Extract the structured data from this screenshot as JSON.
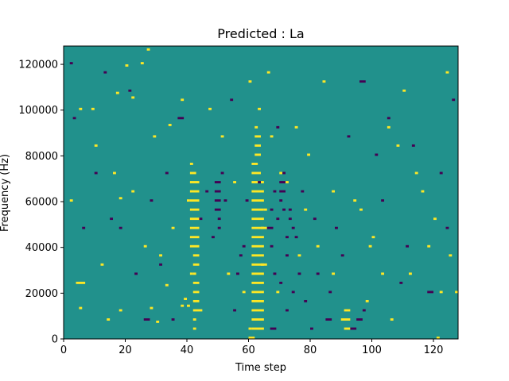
{
  "chart_data": {
    "type": "heatmap",
    "title": "Predicted : La",
    "xlabel": "Time step",
    "ylabel": "Frequency (Hz)",
    "xlim": [
      0,
      128
    ],
    "ylim": [
      0,
      128000
    ],
    "x_ticks": [
      0,
      20,
      40,
      60,
      80,
      100,
      120
    ],
    "y_ticks": [
      0,
      20000,
      40000,
      60000,
      80000,
      100000,
      120000
    ],
    "x_tick_labels": [
      "0",
      "20",
      "40",
      "60",
      "80",
      "100",
      "120"
    ],
    "y_tick_labels": [
      "0",
      "20000",
      "40000",
      "60000",
      "80000",
      "100000",
      "120000"
    ],
    "colors": {
      "background": "#21918c",
      "high": "#fde725",
      "low": "#440154"
    },
    "grid": false,
    "cells_high": [
      [
        4,
        24,
        3,
        1
      ],
      [
        5,
        13,
        1,
        1
      ],
      [
        5,
        100,
        1,
        1
      ],
      [
        17,
        107,
        1,
        1
      ],
      [
        18,
        12,
        1,
        1
      ],
      [
        18,
        61,
        1,
        1
      ],
      [
        20,
        119,
        1,
        1
      ],
      [
        22,
        105,
        1,
        1
      ],
      [
        25,
        120,
        1,
        1
      ],
      [
        27,
        126,
        1,
        1
      ],
      [
        28,
        13,
        1,
        1
      ],
      [
        30,
        7,
        1,
        1
      ],
      [
        33,
        23,
        1,
        1
      ],
      [
        34,
        93,
        1,
        1
      ],
      [
        38,
        14,
        1,
        1
      ],
      [
        39,
        17,
        1,
        1
      ],
      [
        40,
        14,
        1,
        1
      ],
      [
        40,
        60,
        1,
        1
      ],
      [
        41,
        28,
        1,
        1
      ],
      [
        41,
        40,
        3,
        1
      ],
      [
        41,
        44,
        3,
        1
      ],
      [
        41,
        48,
        3,
        1
      ],
      [
        41,
        52,
        3,
        1
      ],
      [
        41,
        56,
        3,
        1
      ],
      [
        41,
        60,
        3,
        1
      ],
      [
        41,
        64,
        3,
        1
      ],
      [
        41,
        68,
        3,
        1
      ],
      [
        41,
        72,
        2,
        1
      ],
      [
        42,
        36,
        2,
        1
      ],
      [
        42,
        32,
        2,
        1
      ],
      [
        42,
        24,
        2,
        1
      ],
      [
        42,
        20,
        2,
        1
      ],
      [
        42,
        16,
        2,
        1
      ],
      [
        42,
        12,
        2,
        1
      ],
      [
        42,
        28,
        1,
        1
      ],
      [
        42,
        8,
        1,
        1
      ],
      [
        42,
        4,
        1,
        1
      ],
      [
        41,
        76,
        1,
        1
      ],
      [
        61,
        4,
        4,
        1
      ],
      [
        61,
        8,
        4,
        1
      ],
      [
        61,
        12,
        4,
        1
      ],
      [
        61,
        16,
        4,
        1
      ],
      [
        61,
        20,
        4,
        1
      ],
      [
        61,
        24,
        4,
        1
      ],
      [
        61,
        28,
        4,
        1
      ],
      [
        61,
        32,
        4,
        1
      ],
      [
        61,
        36,
        4,
        1
      ],
      [
        61,
        40,
        4,
        1
      ],
      [
        61,
        44,
        4,
        1
      ],
      [
        61,
        48,
        4,
        1
      ],
      [
        61,
        52,
        4,
        1
      ],
      [
        61,
        56,
        4,
        1
      ],
      [
        61,
        60,
        4,
        1
      ],
      [
        61,
        64,
        4,
        1
      ],
      [
        61,
        68,
        4,
        1
      ],
      [
        61,
        72,
        3,
        1
      ],
      [
        61,
        76,
        2,
        1
      ],
      [
        62,
        80,
        2,
        1
      ],
      [
        62,
        84,
        2,
        1
      ],
      [
        62,
        88,
        2,
        1
      ],
      [
        62,
        92,
        1,
        1
      ],
      [
        60,
        4,
        1,
        1
      ],
      [
        60,
        0,
        2,
        1
      ],
      [
        64,
        32,
        2,
        1
      ],
      [
        64,
        48,
        2,
        1
      ],
      [
        65,
        56,
        1,
        1
      ],
      [
        60,
        112,
        1,
        1
      ],
      [
        63,
        100,
        1,
        1
      ],
      [
        67,
        88,
        1,
        1
      ],
      [
        70,
        72,
        1,
        1
      ],
      [
        75,
        92,
        1,
        1
      ],
      [
        78,
        56,
        1,
        1
      ],
      [
        82,
        40,
        1,
        1
      ],
      [
        87,
        28,
        1,
        1
      ],
      [
        90,
        8,
        3,
        1
      ],
      [
        91,
        4,
        2,
        1
      ],
      [
        91,
        12,
        2,
        1
      ],
      [
        94,
        60,
        1,
        1
      ],
      [
        99,
        40,
        1,
        1
      ],
      [
        103,
        28,
        1,
        1
      ],
      [
        105,
        92,
        1,
        1
      ],
      [
        110,
        108,
        1,
        1
      ],
      [
        114,
        72,
        1,
        1
      ],
      [
        118,
        40,
        1,
        1
      ],
      [
        121,
        0,
        1,
        1
      ],
      [
        122,
        20,
        1,
        1
      ],
      [
        127,
        20,
        1,
        1
      ],
      [
        124,
        116,
        1,
        1
      ],
      [
        2,
        60,
        1,
        1
      ],
      [
        10,
        84,
        1,
        1
      ],
      [
        14,
        8,
        1,
        1
      ],
      [
        16,
        72,
        1,
        1
      ],
      [
        22,
        64,
        1,
        1
      ],
      [
        26,
        40,
        1,
        1
      ],
      [
        31,
        36,
        1,
        1
      ],
      [
        35,
        48,
        1,
        1
      ],
      [
        38,
        104,
        1,
        1
      ],
      [
        47,
        100,
        1,
        1
      ],
      [
        51,
        88,
        1,
        1
      ],
      [
        55,
        68,
        1,
        1
      ],
      [
        58,
        20,
        1,
        1
      ],
      [
        66,
        116,
        1,
        1
      ],
      [
        72,
        68,
        1,
        1
      ],
      [
        79,
        80,
        1,
        1
      ],
      [
        84,
        112,
        1,
        1
      ],
      [
        96,
        56,
        1,
        1
      ],
      [
        100,
        44,
        1,
        1
      ],
      [
        106,
        8,
        1,
        1
      ],
      [
        108,
        84,
        1,
        1
      ],
      [
        116,
        64,
        1,
        1
      ],
      [
        120,
        52,
        1,
        1
      ],
      [
        125,
        36,
        1,
        1
      ],
      [
        9,
        100,
        1,
        1
      ],
      [
        12,
        32,
        1,
        1
      ],
      [
        29,
        88,
        1,
        1
      ],
      [
        44,
        12,
        1,
        1
      ],
      [
        53,
        28,
        1,
        1
      ],
      [
        69,
        20,
        1,
        1
      ],
      [
        76,
        36,
        1,
        1
      ],
      [
        87,
        64,
        1,
        1
      ],
      [
        98,
        16,
        1,
        1
      ],
      [
        112,
        28,
        1,
        1
      ]
    ],
    "cells_low": [
      [
        2,
        120,
        1,
        1
      ],
      [
        6,
        48,
        1,
        1
      ],
      [
        10,
        72,
        1,
        1
      ],
      [
        13,
        116,
        1,
        1
      ],
      [
        18,
        48,
        1,
        1
      ],
      [
        23,
        28,
        1,
        1
      ],
      [
        26,
        8,
        2,
        1
      ],
      [
        28,
        60,
        1,
        1
      ],
      [
        31,
        32,
        1,
        1
      ],
      [
        35,
        8,
        1,
        1
      ],
      [
        37,
        96,
        2,
        1
      ],
      [
        44,
        52,
        1,
        1
      ],
      [
        46,
        64,
        1,
        1
      ],
      [
        49,
        64,
        2,
        1
      ],
      [
        49,
        60,
        2,
        1
      ],
      [
        49,
        56,
        2,
        1
      ],
      [
        49,
        68,
        2,
        1
      ],
      [
        50,
        52,
        1,
        1
      ],
      [
        50,
        48,
        1,
        1
      ],
      [
        48,
        44,
        1,
        1
      ],
      [
        52,
        60,
        1,
        1
      ],
      [
        51,
        72,
        1,
        1
      ],
      [
        55,
        12,
        1,
        1
      ],
      [
        56,
        28,
        1,
        1
      ],
      [
        57,
        36,
        1,
        1
      ],
      [
        58,
        40,
        1,
        1
      ],
      [
        59,
        60,
        1,
        1
      ],
      [
        66,
        48,
        2,
        1
      ],
      [
        67,
        40,
        1,
        1
      ],
      [
        67,
        56,
        1,
        1
      ],
      [
        68,
        28,
        1,
        1
      ],
      [
        68,
        64,
        1,
        1
      ],
      [
        69,
        52,
        1,
        1
      ],
      [
        70,
        64,
        2,
        1
      ],
      [
        70,
        68,
        2,
        1
      ],
      [
        71,
        72,
        1,
        1
      ],
      [
        70,
        60,
        1,
        1
      ],
      [
        71,
        56,
        1,
        1
      ],
      [
        72,
        44,
        1,
        1
      ],
      [
        73,
        52,
        1,
        1
      ],
      [
        74,
        48,
        1,
        1
      ],
      [
        72,
        36,
        1,
        1
      ],
      [
        69,
        92,
        1,
        1
      ],
      [
        73,
        56,
        1,
        1
      ],
      [
        74,
        20,
        1,
        1
      ],
      [
        75,
        44,
        1,
        1
      ],
      [
        76,
        28,
        1,
        1
      ],
      [
        67,
        4,
        2,
        1
      ],
      [
        70,
        24,
        1,
        1
      ],
      [
        72,
        12,
        1,
        1
      ],
      [
        78,
        16,
        1,
        1
      ],
      [
        80,
        4,
        1,
        1
      ],
      [
        82,
        28,
        1,
        1
      ],
      [
        85,
        8,
        2,
        1
      ],
      [
        86,
        20,
        1,
        1
      ],
      [
        88,
        48,
        1,
        1
      ],
      [
        90,
        36,
        1,
        1
      ],
      [
        93,
        4,
        2,
        1
      ],
      [
        95,
        8,
        2,
        1
      ],
      [
        97,
        12,
        1,
        1
      ],
      [
        96,
        112,
        2,
        1
      ],
      [
        101,
        80,
        1,
        1
      ],
      [
        105,
        96,
        1,
        1
      ],
      [
        109,
        24,
        1,
        1
      ],
      [
        113,
        84,
        1,
        1
      ],
      [
        118,
        20,
        2,
        1
      ],
      [
        124,
        48,
        1,
        1
      ],
      [
        3,
        96,
        1,
        1
      ],
      [
        15,
        52,
        1,
        1
      ],
      [
        21,
        108,
        1,
        1
      ],
      [
        33,
        72,
        1,
        1
      ],
      [
        54,
        104,
        1,
        1
      ],
      [
        63,
        68,
        1,
        1
      ],
      [
        77,
        64,
        1,
        1
      ],
      [
        81,
        52,
        1,
        1
      ],
      [
        92,
        88,
        1,
        1
      ],
      [
        103,
        60,
        1,
        1
      ],
      [
        111,
        40,
        1,
        1
      ],
      [
        122,
        72,
        1,
        1
      ],
      [
        126,
        104,
        1,
        1
      ]
    ]
  }
}
